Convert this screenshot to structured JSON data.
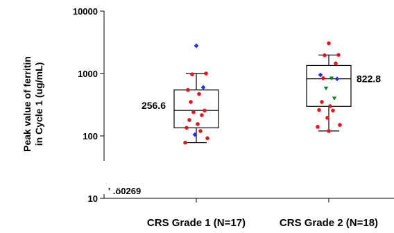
{
  "chart_data": {
    "type": "box-scatter",
    "ylabel_lines": [
      "Peak value of ferritin",
      "in Cycle 1 (ug/mL)"
    ],
    "y_scale": "log",
    "ylim": [
      10,
      10000
    ],
    "yticks": [
      {
        "value": 10,
        "label": "10"
      },
      {
        "value": 100,
        "label": "100"
      },
      {
        "value": 1000,
        "label": "1000"
      },
      {
        "value": 10000,
        "label": "10000"
      }
    ],
    "categories": [
      "CRS Grade 1  (N=17)",
      "CRS Grade 2  (N=18)"
    ],
    "boxes": [
      {
        "category": "CRS Grade 1  (N=17)",
        "min": 78,
        "q1": 135,
        "median": 256.6,
        "q3": 545,
        "max": 1000,
        "median_label": "256.6"
      },
      {
        "category": "CRS Grade 2  (N=18)",
        "min": 120,
        "q1": 298,
        "median": 822.8,
        "q3": 1345,
        "max": 1980,
        "median_label": "822.8"
      }
    ],
    "point_colors": {
      "red-circle": "#e8141b",
      "blue-diamond": "#1f33e6",
      "green-triangle": "#0c8a1d"
    },
    "points": [
      {
        "category": 0,
        "y": 2780,
        "marker": "blue-diamond"
      },
      {
        "category": 0,
        "y": 1000,
        "marker": "red-circle"
      },
      {
        "category": 0,
        "y": 970,
        "marker": "red-circle"
      },
      {
        "category": 0,
        "y": 600,
        "marker": "blue-diamond"
      },
      {
        "category": 0,
        "y": 545,
        "marker": "red-circle"
      },
      {
        "category": 0,
        "y": 470,
        "marker": "red-circle"
      },
      {
        "category": 0,
        "y": 350,
        "marker": "red-circle"
      },
      {
        "category": 0,
        "y": 255,
        "marker": "red-circle"
      },
      {
        "category": 0,
        "y": 240,
        "marker": "red-circle"
      },
      {
        "category": 0,
        "y": 215,
        "marker": "red-circle"
      },
      {
        "category": 0,
        "y": 180,
        "marker": "red-circle"
      },
      {
        "category": 0,
        "y": 155,
        "marker": "red-circle"
      },
      {
        "category": 0,
        "y": 135,
        "marker": "red-circle"
      },
      {
        "category": 0,
        "y": 120,
        "marker": "red-circle"
      },
      {
        "category": 0,
        "y": 105,
        "marker": "blue-diamond"
      },
      {
        "category": 0,
        "y": 92,
        "marker": "red-circle"
      },
      {
        "category": 0,
        "y": 78,
        "marker": "red-circle"
      },
      {
        "category": 1,
        "y": 3050,
        "marker": "red-circle"
      },
      {
        "category": 1,
        "y": 1980,
        "marker": "red-circle"
      },
      {
        "category": 1,
        "y": 1960,
        "marker": "red-circle"
      },
      {
        "category": 1,
        "y": 1450,
        "marker": "red-circle"
      },
      {
        "category": 1,
        "y": 950,
        "marker": "blue-diamond"
      },
      {
        "category": 1,
        "y": 840,
        "marker": "green-triangle"
      },
      {
        "category": 1,
        "y": 840,
        "marker": "red-circle"
      },
      {
        "category": 1,
        "y": 820,
        "marker": "blue-diamond"
      },
      {
        "category": 1,
        "y": 580,
        "marker": "green-triangle"
      },
      {
        "category": 1,
        "y": 400,
        "marker": "green-triangle"
      },
      {
        "category": 1,
        "y": 350,
        "marker": "red-circle"
      },
      {
        "category": 1,
        "y": 300,
        "marker": "red-circle"
      },
      {
        "category": 1,
        "y": 260,
        "marker": "red-circle"
      },
      {
        "category": 1,
        "y": 255,
        "marker": "red-circle"
      },
      {
        "category": 1,
        "y": 195,
        "marker": "red-circle"
      },
      {
        "category": 1,
        "y": 150,
        "marker": "red-circle"
      },
      {
        "category": 1,
        "y": 140,
        "marker": "red-circle"
      },
      {
        "category": 1,
        "y": 120,
        "marker": "red-circle"
      }
    ],
    "annotations": [
      {
        "text": "'  .ö0269",
        "y": 10
      }
    ],
    "grid": false,
    "legend": "none"
  }
}
